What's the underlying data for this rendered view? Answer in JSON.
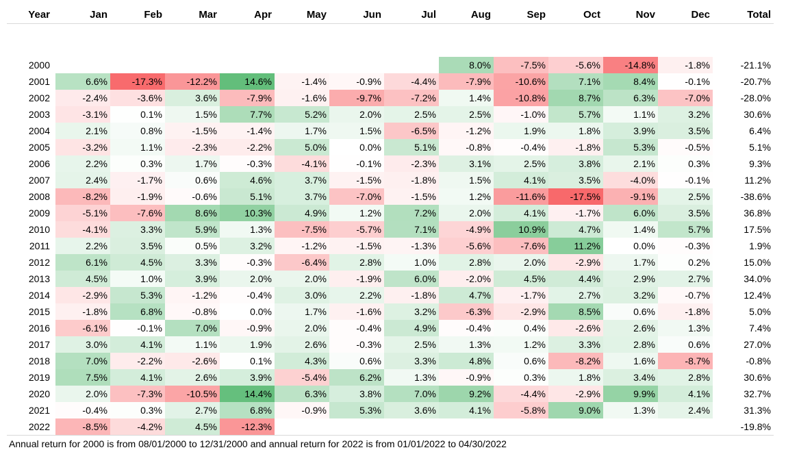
{
  "colors": {
    "positive_max": "#63be7b",
    "neutral": "#ffffff",
    "negative_max": "#f8696b",
    "header_rule": "#d9d9d9"
  },
  "chart_data": {
    "type": "heatmap",
    "title": "",
    "x": [
      "Jan",
      "Feb",
      "Mar",
      "Apr",
      "May",
      "Jun",
      "Jul",
      "Aug",
      "Sep",
      "Oct",
      "Nov",
      "Dec"
    ],
    "y": [
      "2000",
      "2001",
      "2002",
      "2003",
      "2004",
      "2005",
      "2006",
      "2007",
      "2008",
      "2009",
      "2010",
      "2011",
      "2012",
      "2013",
      "2014",
      "2015",
      "2016",
      "2017",
      "2018",
      "2019",
      "2020",
      "2021",
      "2022"
    ],
    "columns": {
      "year": "Year",
      "total": "Total"
    },
    "unit": "%",
    "values": [
      [
        null,
        null,
        null,
        null,
        null,
        null,
        null,
        8.0,
        -7.5,
        -5.6,
        -14.8,
        -1.8
      ],
      [
        6.6,
        -17.3,
        -12.2,
        14.6,
        -1.4,
        -0.9,
        -4.4,
        -7.9,
        -10.6,
        7.1,
        8.4,
        -0.1
      ],
      [
        -2.4,
        -3.6,
        3.6,
        -7.9,
        -1.6,
        -9.7,
        -7.2,
        1.4,
        -10.8,
        8.7,
        6.3,
        -7.0
      ],
      [
        -3.1,
        0.1,
        1.5,
        7.7,
        5.2,
        2.0,
        2.5,
        2.5,
        -1.0,
        5.7,
        1.1,
        3.2
      ],
      [
        2.1,
        0.8,
        -1.5,
        -1.4,
        1.7,
        1.5,
        -6.5,
        -1.2,
        1.9,
        1.8,
        3.9,
        3.5
      ],
      [
        -3.2,
        1.1,
        -2.3,
        -2.2,
        5.0,
        0.0,
        5.1,
        -0.8,
        -0.4,
        -1.8,
        5.3,
        -0.5
      ],
      [
        2.2,
        0.3,
        1.7,
        -0.3,
        -4.1,
        -0.1,
        -2.3,
        3.1,
        2.5,
        3.8,
        2.1,
        0.3
      ],
      [
        2.4,
        -1.7,
        0.6,
        4.6,
        3.7,
        -1.5,
        -1.8,
        1.5,
        4.1,
        3.5,
        -4.0,
        -0.1
      ],
      [
        -8.2,
        -1.9,
        -0.6,
        5.1,
        3.7,
        -7.0,
        -1.5,
        1.2,
        -11.6,
        -17.5,
        -9.1,
        2.5
      ],
      [
        -5.1,
        -7.6,
        8.6,
        10.3,
        4.9,
        1.2,
        7.2,
        2.0,
        4.1,
        -1.7,
        6.0,
        3.5
      ],
      [
        -4.1,
        3.3,
        5.9,
        1.3,
        -7.5,
        -5.7,
        7.1,
        -4.9,
        10.9,
        4.7,
        1.4,
        5.7
      ],
      [
        2.2,
        3.5,
        0.5,
        3.2,
        -1.2,
        -1.5,
        -1.3,
        -5.6,
        -7.6,
        11.2,
        0.0,
        -0.3
      ],
      [
        6.1,
        4.5,
        3.3,
        -0.3,
        -6.4,
        2.8,
        1.0,
        2.8,
        2.0,
        -2.9,
        1.7,
        0.2
      ],
      [
        4.5,
        1.0,
        3.9,
        2.0,
        2.0,
        -1.9,
        6.0,
        -2.0,
        4.5,
        4.4,
        2.9,
        2.7
      ],
      [
        -2.9,
        5.3,
        -1.2,
        -0.4,
        3.0,
        2.2,
        -1.8,
        4.7,
        -1.7,
        2.7,
        3.2,
        -0.7
      ],
      [
        -1.8,
        6.8,
        -0.8,
        0.0,
        1.7,
        -1.6,
        3.2,
        -6.3,
        -2.9,
        8.5,
        0.6,
        -1.8
      ],
      [
        -6.1,
        -0.1,
        7.0,
        -0.9,
        2.0,
        -0.4,
        4.9,
        -0.4,
        0.4,
        -2.6,
        2.6,
        1.3
      ],
      [
        3.0,
        4.1,
        1.1,
        1.9,
        2.6,
        -0.3,
        2.5,
        1.3,
        1.2,
        3.3,
        2.8,
        0.6
      ],
      [
        7.0,
        -2.2,
        -2.6,
        0.1,
        4.3,
        0.6,
        3.3,
        4.8,
        0.6,
        -8.2,
        1.6,
        -8.7
      ],
      [
        7.5,
        4.1,
        2.6,
        3.9,
        -5.4,
        6.2,
        1.3,
        -0.9,
        0.3,
        1.8,
        3.4,
        2.8
      ],
      [
        2.0,
        -7.3,
        -10.5,
        14.4,
        6.3,
        3.8,
        7.0,
        9.2,
        -4.4,
        -2.9,
        9.9,
        4.1
      ],
      [
        -0.4,
        0.3,
        2.7,
        6.8,
        -0.9,
        5.3,
        3.6,
        4.1,
        -5.8,
        9.0,
        1.3,
        2.4
      ],
      [
        -8.5,
        -4.2,
        4.5,
        -12.3,
        null,
        null,
        null,
        null,
        null,
        null,
        null,
        null
      ]
    ],
    "totals": [
      -21.1,
      -20.7,
      -28.0,
      30.6,
      6.4,
      5.1,
      9.3,
      11.2,
      -38.6,
      36.8,
      17.5,
      1.9,
      15.0,
      34.0,
      12.4,
      5.0,
      7.4,
      27.0,
      -0.8,
      30.6,
      32.7,
      31.3,
      -19.8
    ],
    "color_scale": {
      "min": -17.5,
      "max": 14.6
    },
    "grid": false,
    "legend": "none"
  },
  "footnote": "Annual return for 2000 is from 08/01/2000 to 12/31/2000 and annual return for 2022 is from 01/01/2022 to 04/30/2022"
}
